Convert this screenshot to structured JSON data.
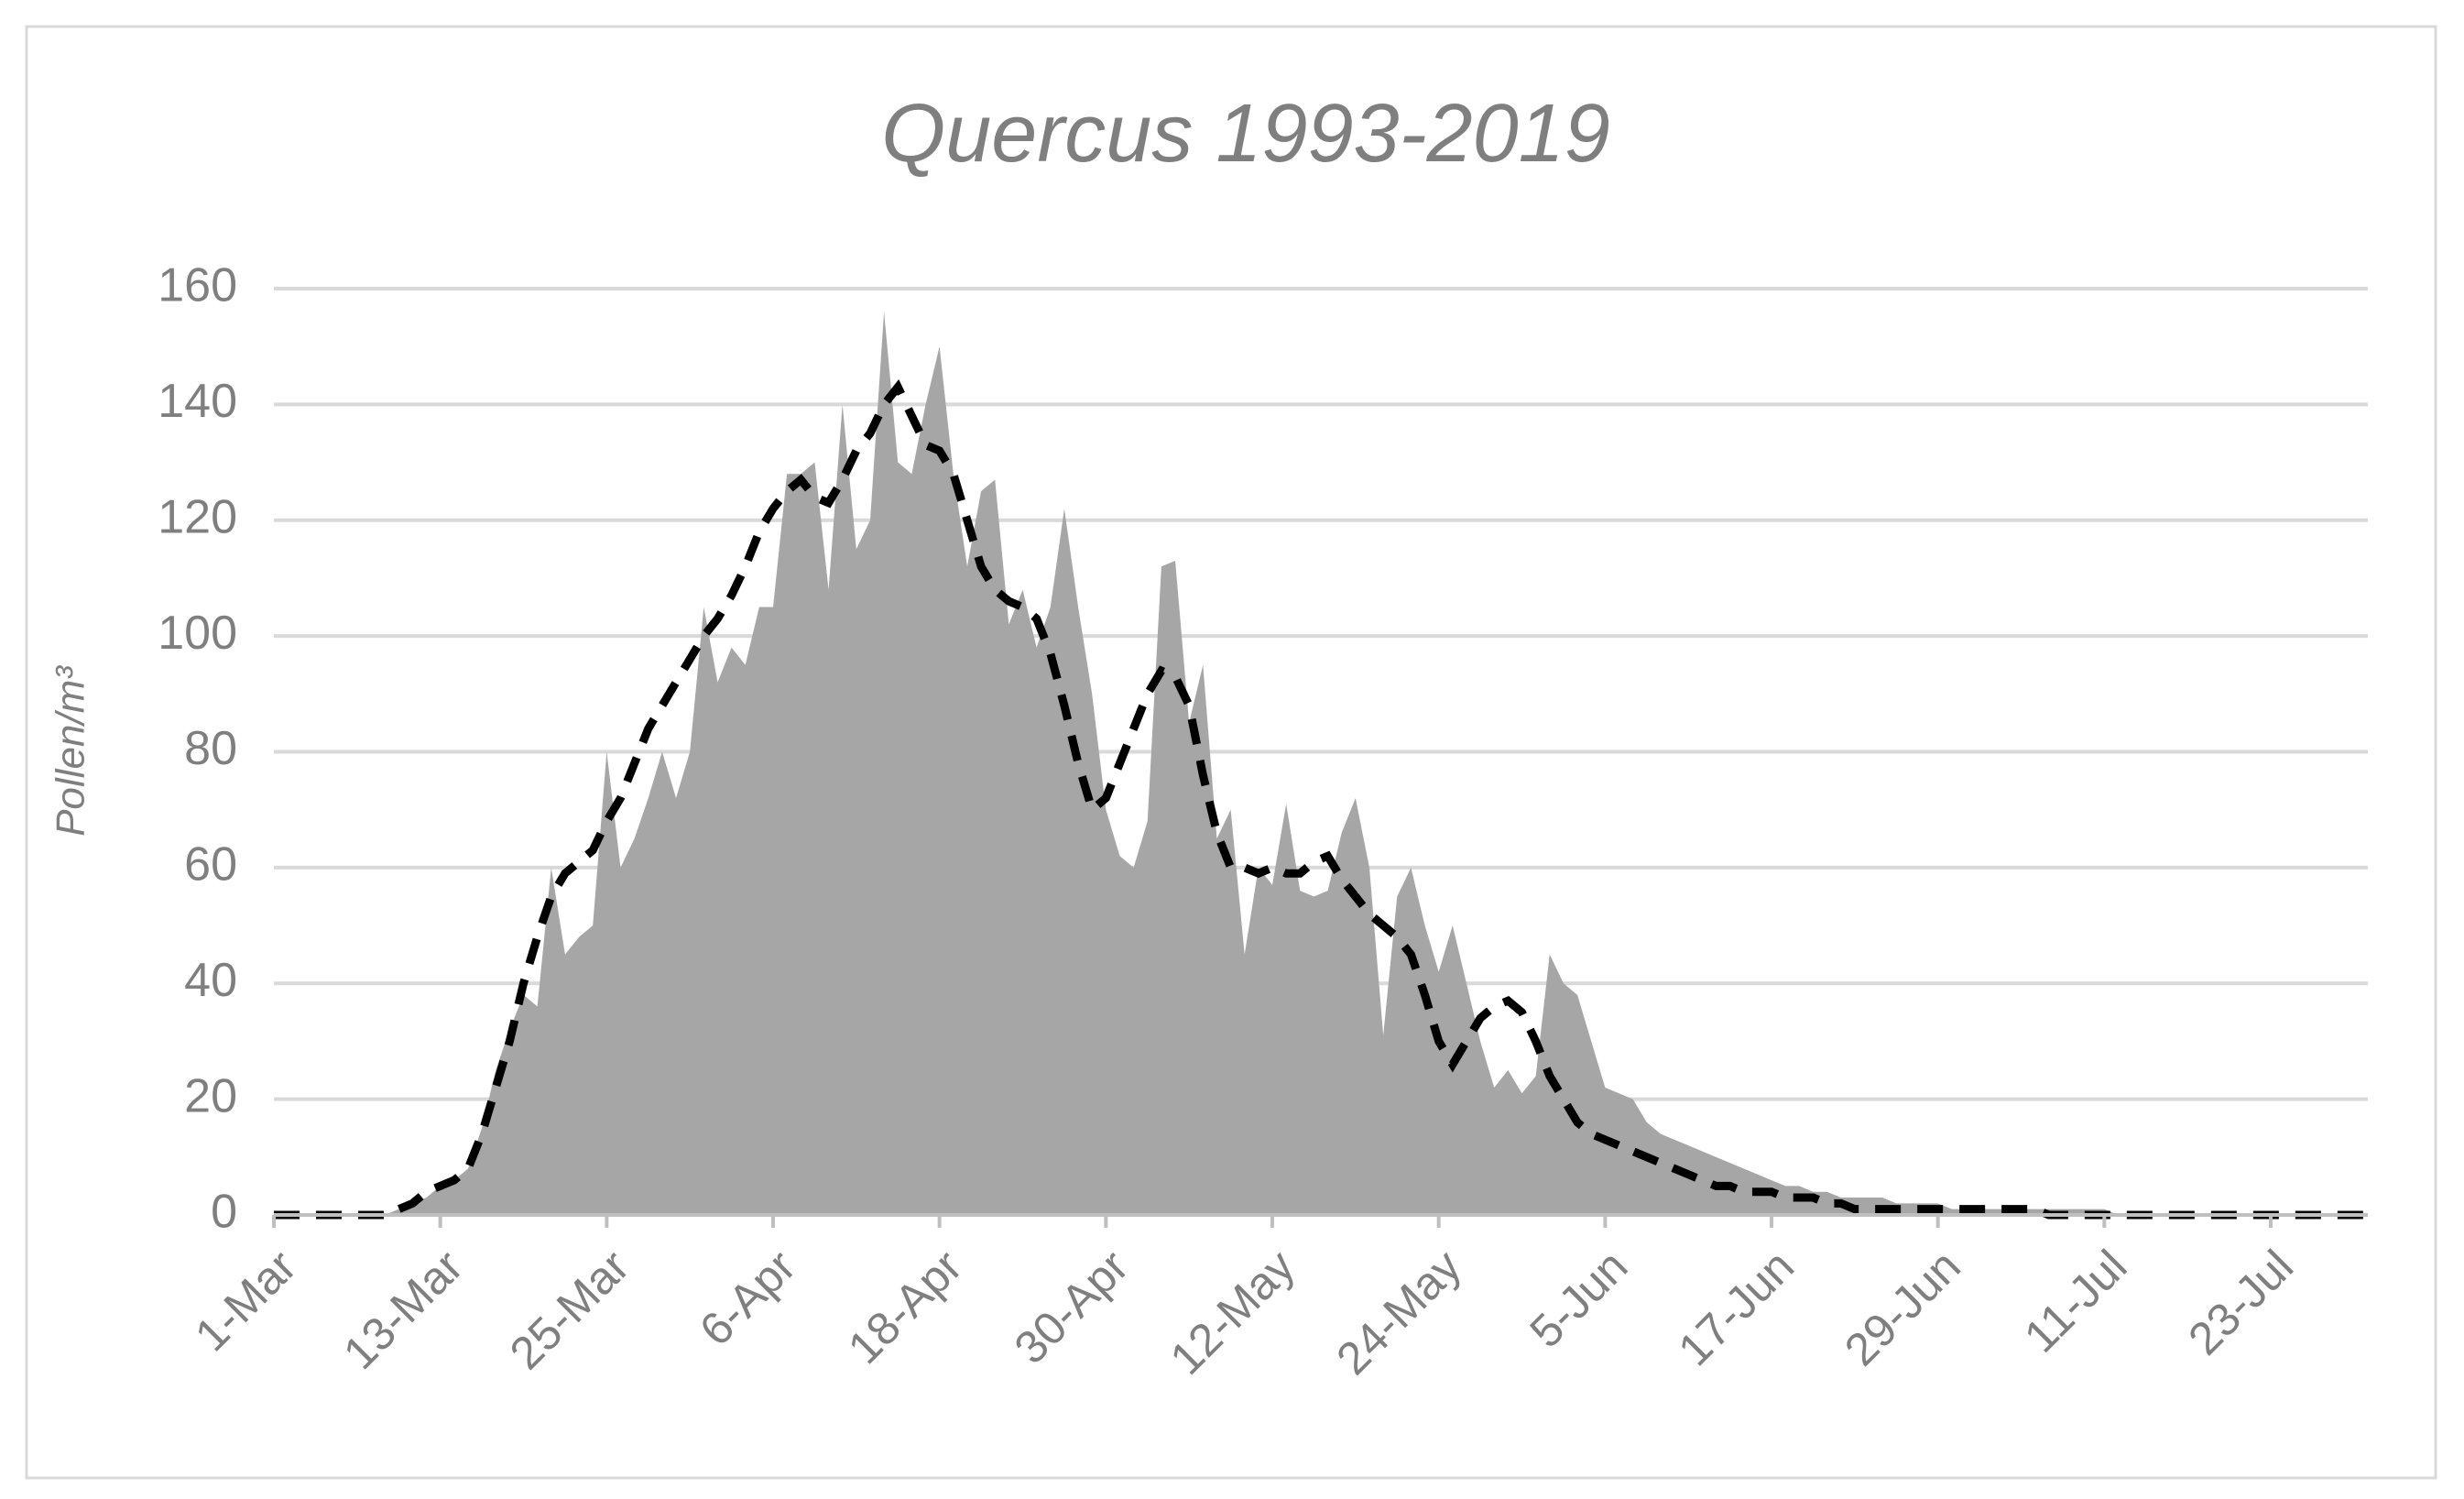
{
  "chart_data": {
    "type": "area",
    "title": "Quercus 1993-2019",
    "y_label": "Pollen/m³",
    "categories": [
      "1-Mar",
      null,
      null,
      null,
      null,
      null,
      null,
      null,
      null,
      null,
      null,
      null,
      "13-Mar",
      null,
      null,
      null,
      null,
      null,
      null,
      null,
      null,
      null,
      null,
      null,
      "25-Mar",
      null,
      null,
      null,
      null,
      null,
      null,
      null,
      null,
      null,
      null,
      null,
      "6-Apr",
      null,
      null,
      null,
      null,
      null,
      null,
      null,
      null,
      null,
      null,
      null,
      "18-Apr",
      null,
      null,
      null,
      null,
      null,
      null,
      null,
      null,
      null,
      null,
      null,
      "30-Apr",
      null,
      null,
      null,
      null,
      null,
      null,
      null,
      null,
      null,
      null,
      null,
      "12-May",
      null,
      null,
      null,
      null,
      null,
      null,
      null,
      null,
      null,
      null,
      null,
      "24-May",
      null,
      null,
      null,
      null,
      null,
      null,
      null,
      null,
      null,
      null,
      null,
      "5-Jun",
      null,
      null,
      null,
      null,
      null,
      null,
      null,
      null,
      null,
      null,
      null,
      "17-Jun",
      null,
      null,
      null,
      null,
      null,
      null,
      null,
      null,
      null,
      null,
      null,
      "29-Jun",
      null,
      null,
      null,
      null,
      null,
      null,
      null,
      null,
      null,
      null,
      null,
      "11-Jul",
      null,
      null,
      null,
      null,
      null,
      null,
      null,
      null,
      null,
      null,
      null,
      "23-Jul",
      null,
      null,
      null,
      null,
      null,
      null,
      null
    ],
    "series": [
      {
        "type": "area",
        "color": "#a6a6a6",
        "values": [
          0,
          0,
          0,
          0,
          0,
          0,
          0,
          0,
          0,
          1,
          2,
          3,
          5,
          6,
          8,
          15,
          25,
          32,
          38,
          36,
          60,
          45,
          48,
          50,
          80,
          60,
          65,
          72,
          80,
          72,
          80,
          105,
          92,
          98,
          95,
          105,
          105,
          128,
          128,
          130,
          108,
          140,
          115,
          120,
          156,
          130,
          128,
          140,
          150,
          128,
          112,
          125,
          127,
          102,
          108,
          98,
          105,
          122,
          105,
          90,
          70,
          62,
          60,
          68,
          112,
          113,
          85,
          95,
          65,
          70,
          45,
          60,
          57,
          71,
          56,
          55,
          56,
          66,
          72,
          60,
          31,
          55,
          60,
          50,
          42,
          50,
          40,
          30,
          22,
          25,
          21,
          24,
          45,
          40,
          38,
          30,
          22,
          21,
          20,
          16,
          14,
          13,
          12,
          11,
          10,
          9,
          8,
          7,
          6,
          5,
          5,
          4,
          4,
          3,
          3,
          3,
          3,
          2,
          2,
          2,
          2,
          1,
          1,
          1,
          1,
          1,
          1,
          1,
          1,
          1,
          1,
          1,
          1,
          0,
          0,
          0,
          0,
          0,
          0,
          0,
          0,
          0,
          0,
          0,
          0,
          0,
          0,
          0,
          0,
          0,
          0,
          0
        ]
      },
      {
        "type": "line",
        "color": "#000000",
        "dashed": true,
        "values": [
          0,
          0,
          0,
          0,
          0,
          0,
          0,
          0,
          0,
          1,
          2,
          4,
          5,
          6,
          8,
          14,
          22,
          30,
          40,
          48,
          55,
          59,
          61,
          63,
          68,
          72,
          78,
          84,
          88,
          92,
          96,
          100,
          103,
          107,
          112,
          118,
          122,
          125,
          127,
          124,
          123,
          127,
          132,
          135,
          140,
          143,
          138,
          133,
          132,
          128,
          120,
          112,
          108,
          106,
          105,
          103,
          97,
          88,
          78,
          70,
          72,
          78,
          84,
          90,
          94,
          93,
          88,
          76,
          66,
          60,
          60,
          59,
          60,
          59,
          59,
          61,
          62,
          58,
          55,
          52,
          50,
          48,
          45,
          38,
          30,
          26,
          30,
          34,
          36,
          37,
          35,
          30,
          24,
          20,
          16,
          14,
          13,
          12,
          11,
          10,
          9,
          8,
          7,
          6,
          5,
          5,
          4,
          4,
          4,
          3,
          3,
          3,
          2,
          2,
          1,
          1,
          1,
          1,
          1,
          1,
          1,
          1,
          1,
          1,
          1,
          1,
          1,
          1,
          0,
          0,
          0,
          0,
          0,
          0,
          0,
          0,
          0,
          0,
          0,
          0,
          0,
          0,
          0,
          0,
          0,
          0,
          0,
          0,
          0,
          0,
          0,
          0
        ]
      }
    ],
    "ylim": [
      0,
      160
    ],
    "yticks": [
      0,
      20,
      40,
      60,
      80,
      100,
      120,
      140,
      160
    ],
    "grid": true
  }
}
